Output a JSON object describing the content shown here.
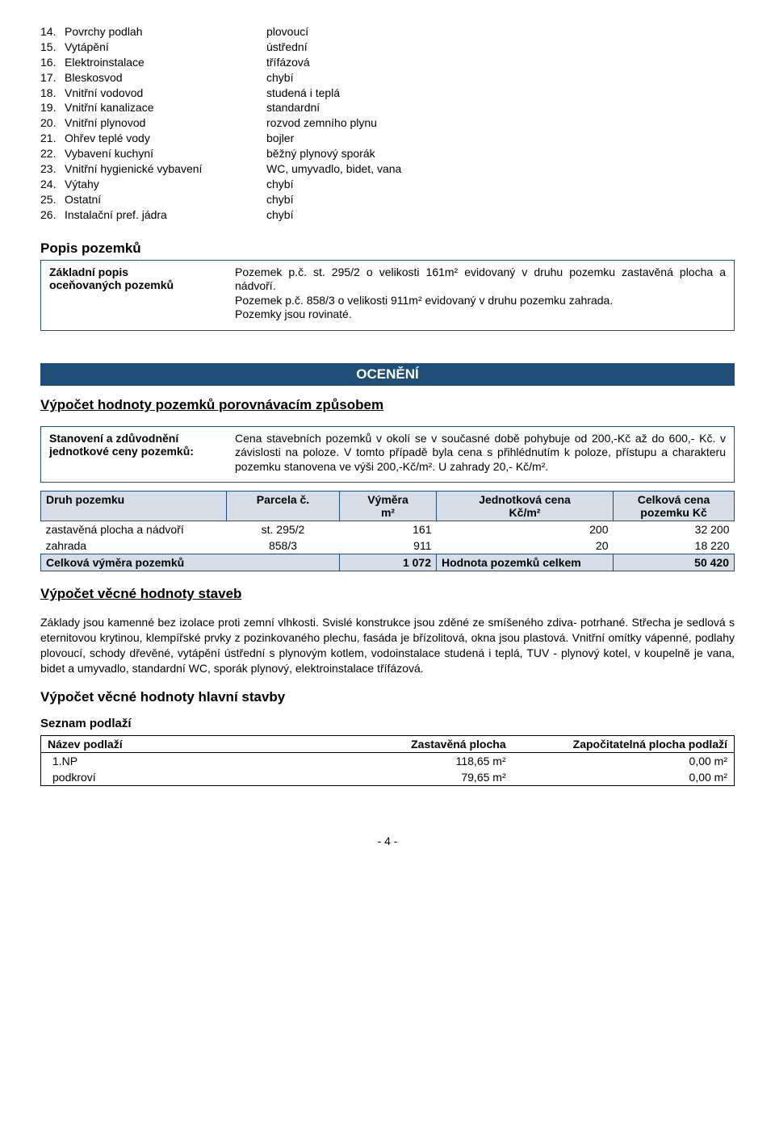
{
  "equipment": {
    "items": [
      {
        "num": "14.",
        "label": "Povrchy podlah",
        "value": "plovoucí"
      },
      {
        "num": "15.",
        "label": "Vytápění",
        "value": "ústřední"
      },
      {
        "num": "16.",
        "label": "Elektroinstalace",
        "value": "třífázová"
      },
      {
        "num": "17.",
        "label": "Bleskosvod",
        "value": "chybí"
      },
      {
        "num": "18.",
        "label": "Vnitřní vodovod",
        "value": "studená i teplá"
      },
      {
        "num": "19.",
        "label": "Vnitřní kanalizace",
        "value": "standardní"
      },
      {
        "num": "20.",
        "label": "Vnitřní plynovod",
        "value": "rozvod zemního plynu"
      },
      {
        "num": "21.",
        "label": "Ohřev teplé vody",
        "value": "bojler"
      },
      {
        "num": "22.",
        "label": "Vybavení kuchyní",
        "value": "běžný plynový sporák"
      },
      {
        "num": "23.",
        "label": "Vnitřní hygienické vybavení",
        "value": "WC, umyvadlo, bidet, vana"
      },
      {
        "num": "24.",
        "label": "Výtahy",
        "value": "chybí"
      },
      {
        "num": "25.",
        "label": "Ostatní",
        "value": "chybí"
      },
      {
        "num": "26.",
        "label": "Instalační pref. jádra",
        "value": "chybí"
      }
    ]
  },
  "popisPozemku": {
    "heading": "Popis pozemků",
    "label1": "Základní popis",
    "label2": "oceňovaných pozemků",
    "p1": "Pozemek p.č. st. 295/2 o velikosti 161m² evidovaný v druhu pozemku zastavěná plocha a nádvoří.",
    "p2": "Pozemek p.č. 858/3 o velikosti 911m² evidovaný v druhu pozemku zahrada.",
    "p3": "Pozemky jsou rovinaté."
  },
  "oceneni": {
    "banner": "OCENĚNÍ",
    "heading1": "Výpočet hodnoty pozemků porovnávacím způsobem",
    "boxLabel1": "Stanovení a zdůvodnění",
    "boxLabel2": "jednotkové ceny pozemků:",
    "boxText": "Cena stavebních pozemků v  okolí se v současné době pohybuje od 200,-Kč až do  600,- Kč. v závislosti na poloze. V tomto případě byla cena s přihlédnutím k poloze, přístupu a charakteru pozemku stanovena ve výši 200,-Kč/m². U zahrady 20,- Kč/m².",
    "table": {
      "h1": "Druh pozemku",
      "h2": "Parcela č.",
      "h3a": "Výměra",
      "h3b": "m²",
      "h4a": "Jednotková cena",
      "h4b": "Kč/m²",
      "h5a": "Celková cena",
      "h5b": "pozemku Kč",
      "rows": [
        {
          "druh": "zastavěná plocha a nádvoří",
          "parcela": "st. 295/2",
          "vymera": "161",
          "jc": "200",
          "cc": "32 200"
        },
        {
          "druh": "zahrada",
          "parcela": "858/3",
          "vymera": "911",
          "jc": "20",
          "cc": "18 220"
        }
      ],
      "totLabel": "Celková výměra pozemků",
      "totVymera": "1 072",
      "totMid": "Hodnota pozemků celkem",
      "totCena": "50 420"
    }
  },
  "vecna": {
    "heading": "Výpočet věcné hodnoty staveb",
    "para": "Základy jsou kamenné bez izolace proti zemní vlhkosti. Svislé konstrukce jsou zděné ze smíšeného zdiva- potrhané. Střecha je sedlová s eternitovou krytinou, klempířské prvky z pozinkovaného plechu, fasáda je břízolitová, okna jsou plastová. Vnitřní omítky vápenné, podlahy plovoucí, schody dřevěné, vytápění ústřední s plynovým kotlem, vodoinstalace studená i teplá, TUV - plynový kotel, v koupelně je vana, bidet a umyvadlo, standardní WC, sporák plynový, elektroinstalace třífázová.",
    "heading2": "Výpočet věcné hodnoty hlavní stavby",
    "seznam": "Seznam podlaží",
    "table": {
      "h1": "Název podlaží",
      "h2": "Zastavěná plocha",
      "h3": "Započitatelná plocha podlaží",
      "rows": [
        {
          "name": "1.NP",
          "zp": "118,65 m²",
          "zpp": "0,00 m²"
        },
        {
          "name": "podkroví",
          "zp": "79,65 m²",
          "zpp": "0,00 m²"
        }
      ]
    }
  },
  "pagenum": "- 4 -"
}
